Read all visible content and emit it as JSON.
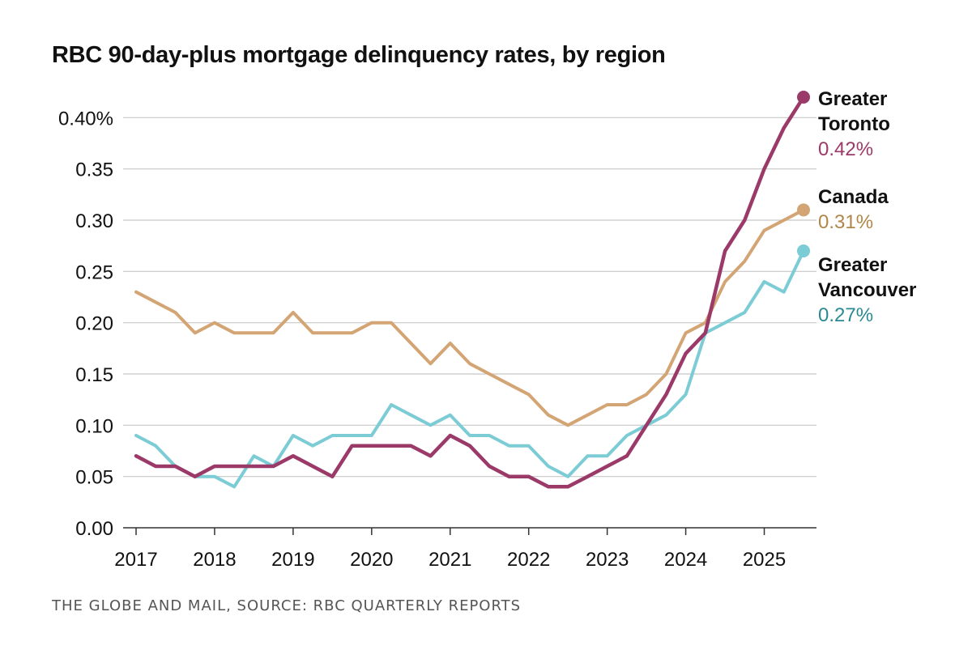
{
  "chart_data": {
    "type": "line",
    "title": "RBC 90-day-plus mortgage delinquency rates, by region",
    "source": "THE GLOBE AND MAIL, SOURCE: RBC QUARTERLY REPORTS",
    "x_ticks": [
      "2017",
      "2018",
      "2019",
      "2020",
      "2021",
      "2022",
      "2023",
      "2024",
      "2025"
    ],
    "x_range": [
      2017.0,
      2025.5
    ],
    "y_ticks": [
      {
        "value": 0.0,
        "label": "0.00"
      },
      {
        "value": 0.05,
        "label": "0.05"
      },
      {
        "value": 0.1,
        "label": "0.10"
      },
      {
        "value": 0.15,
        "label": "0.15"
      },
      {
        "value": 0.2,
        "label": "0.20"
      },
      {
        "value": 0.25,
        "label": "0.25"
      },
      {
        "value": 0.3,
        "label": "0.30"
      },
      {
        "value": 0.35,
        "label": "0.35"
      },
      {
        "value": 0.4,
        "label": "0.40%"
      }
    ],
    "ylim": [
      0,
      0.42
    ],
    "grid": "horizontal",
    "x_start": 2017.0,
    "x_step": 0.25,
    "series": [
      {
        "key": "canada",
        "name_lines": [
          "Canada"
        ],
        "end_label": "0.31%",
        "color": "#d4a574",
        "label_color": "#b08748",
        "values": [
          0.23,
          0.22,
          0.21,
          0.19,
          0.2,
          0.19,
          0.19,
          0.19,
          0.21,
          0.19,
          0.19,
          0.19,
          0.2,
          0.2,
          0.18,
          0.16,
          0.18,
          0.16,
          0.15,
          0.14,
          0.13,
          0.11,
          0.1,
          0.11,
          0.12,
          0.12,
          0.13,
          0.15,
          0.19,
          0.2,
          0.24,
          0.26,
          0.29,
          0.3,
          0.31
        ]
      },
      {
        "key": "vancouver",
        "name_lines": [
          "Greater",
          "Vancouver"
        ],
        "end_label": "0.27%",
        "color": "#7cccd6",
        "label_color": "#2a8a94",
        "values": [
          0.09,
          0.08,
          0.06,
          0.05,
          0.05,
          0.04,
          0.07,
          0.06,
          0.09,
          0.08,
          0.09,
          0.09,
          0.09,
          0.12,
          0.11,
          0.1,
          0.11,
          0.09,
          0.09,
          0.08,
          0.08,
          0.06,
          0.05,
          0.07,
          0.07,
          0.09,
          0.1,
          0.11,
          0.13,
          0.19,
          0.2,
          0.21,
          0.24,
          0.23,
          0.27
        ]
      },
      {
        "key": "toronto",
        "name_lines": [
          "Greater",
          "Toronto"
        ],
        "end_label": "0.42%",
        "color": "#9b3a68",
        "label_color": "#9b3a68",
        "values": [
          0.07,
          0.06,
          0.06,
          0.05,
          0.06,
          0.06,
          0.06,
          0.06,
          0.07,
          0.06,
          0.05,
          0.08,
          0.08,
          0.08,
          0.08,
          0.07,
          0.09,
          0.08,
          0.06,
          0.05,
          0.05,
          0.04,
          0.04,
          0.05,
          0.06,
          0.07,
          0.1,
          0.13,
          0.17,
          0.19,
          0.27,
          0.3,
          0.35,
          0.39,
          0.42
        ]
      }
    ]
  }
}
